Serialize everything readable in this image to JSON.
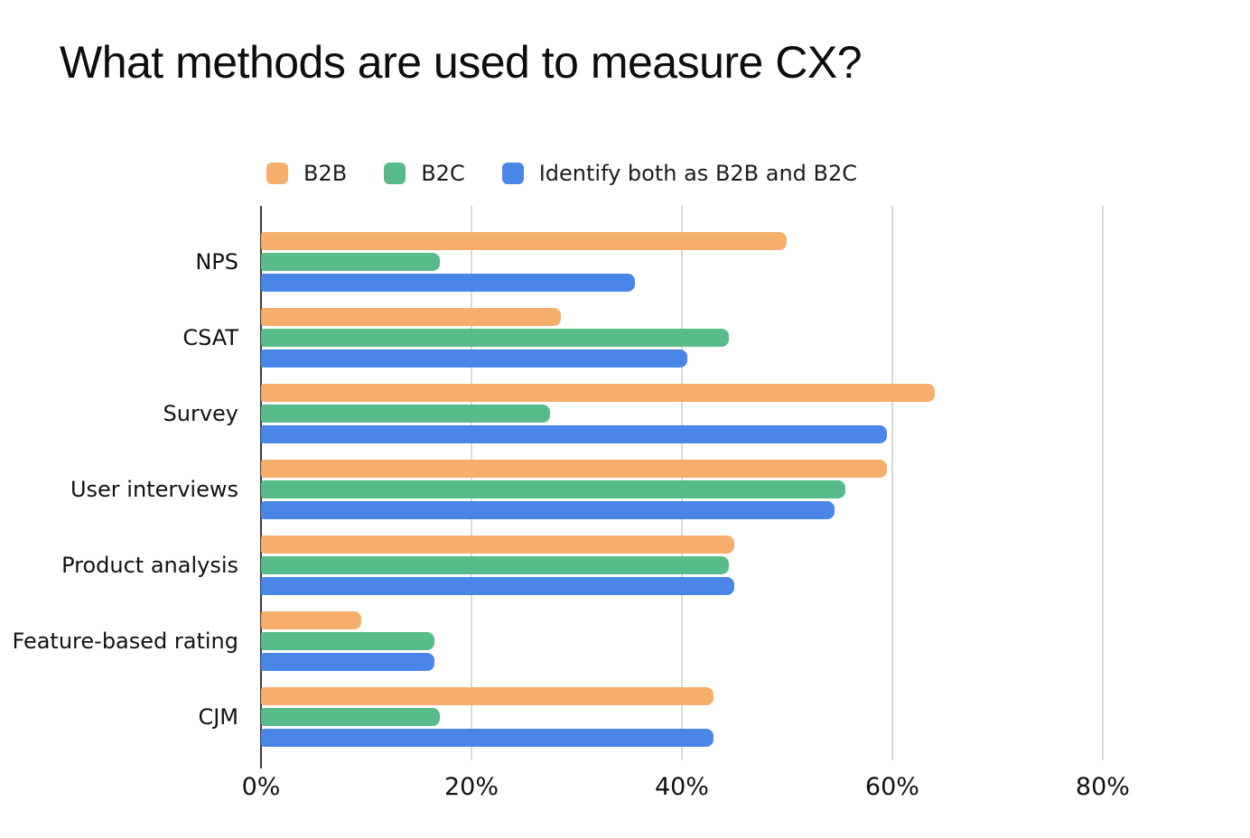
{
  "page": {
    "title": "What methods are used to measure CX?"
  },
  "chart_data": {
    "type": "bar",
    "orientation": "horizontal",
    "title": "What methods are used to measure CX?",
    "categories": [
      "NPS",
      "CSAT",
      "Survey",
      "User interviews",
      "Product analysis",
      "Feature-based rating",
      "CJM"
    ],
    "series": [
      {
        "name": "B2B",
        "color": "#F6AE6C",
        "values": [
          50,
          28.5,
          64,
          59.5,
          45,
          9.5,
          43
        ]
      },
      {
        "name": "B2C",
        "color": "#57BB8A",
        "values": [
          17,
          44.5,
          27.5,
          55.5,
          44.5,
          16.5,
          17
        ]
      },
      {
        "name": "Identify both as B2B and B2C",
        "color": "#4A86E8",
        "values": [
          35.5,
          40.5,
          59.5,
          54.5,
          45,
          16.5,
          43
        ]
      }
    ],
    "xlabel": "",
    "ylabel": "",
    "x_ticks": [
      {
        "label": "0%",
        "value": 0
      },
      {
        "label": "20%",
        "value": 20
      },
      {
        "label": "40%",
        "value": 40
      },
      {
        "label": "60%",
        "value": 60
      },
      {
        "label": "80%",
        "value": 80
      }
    ],
    "xlim": [
      0,
      94
    ],
    "grid": "vertical",
    "legend_position": "top",
    "colors": {
      "axis_line": "#3d3d3d",
      "gridline": "#d9d9d9",
      "text": "#111111"
    }
  }
}
